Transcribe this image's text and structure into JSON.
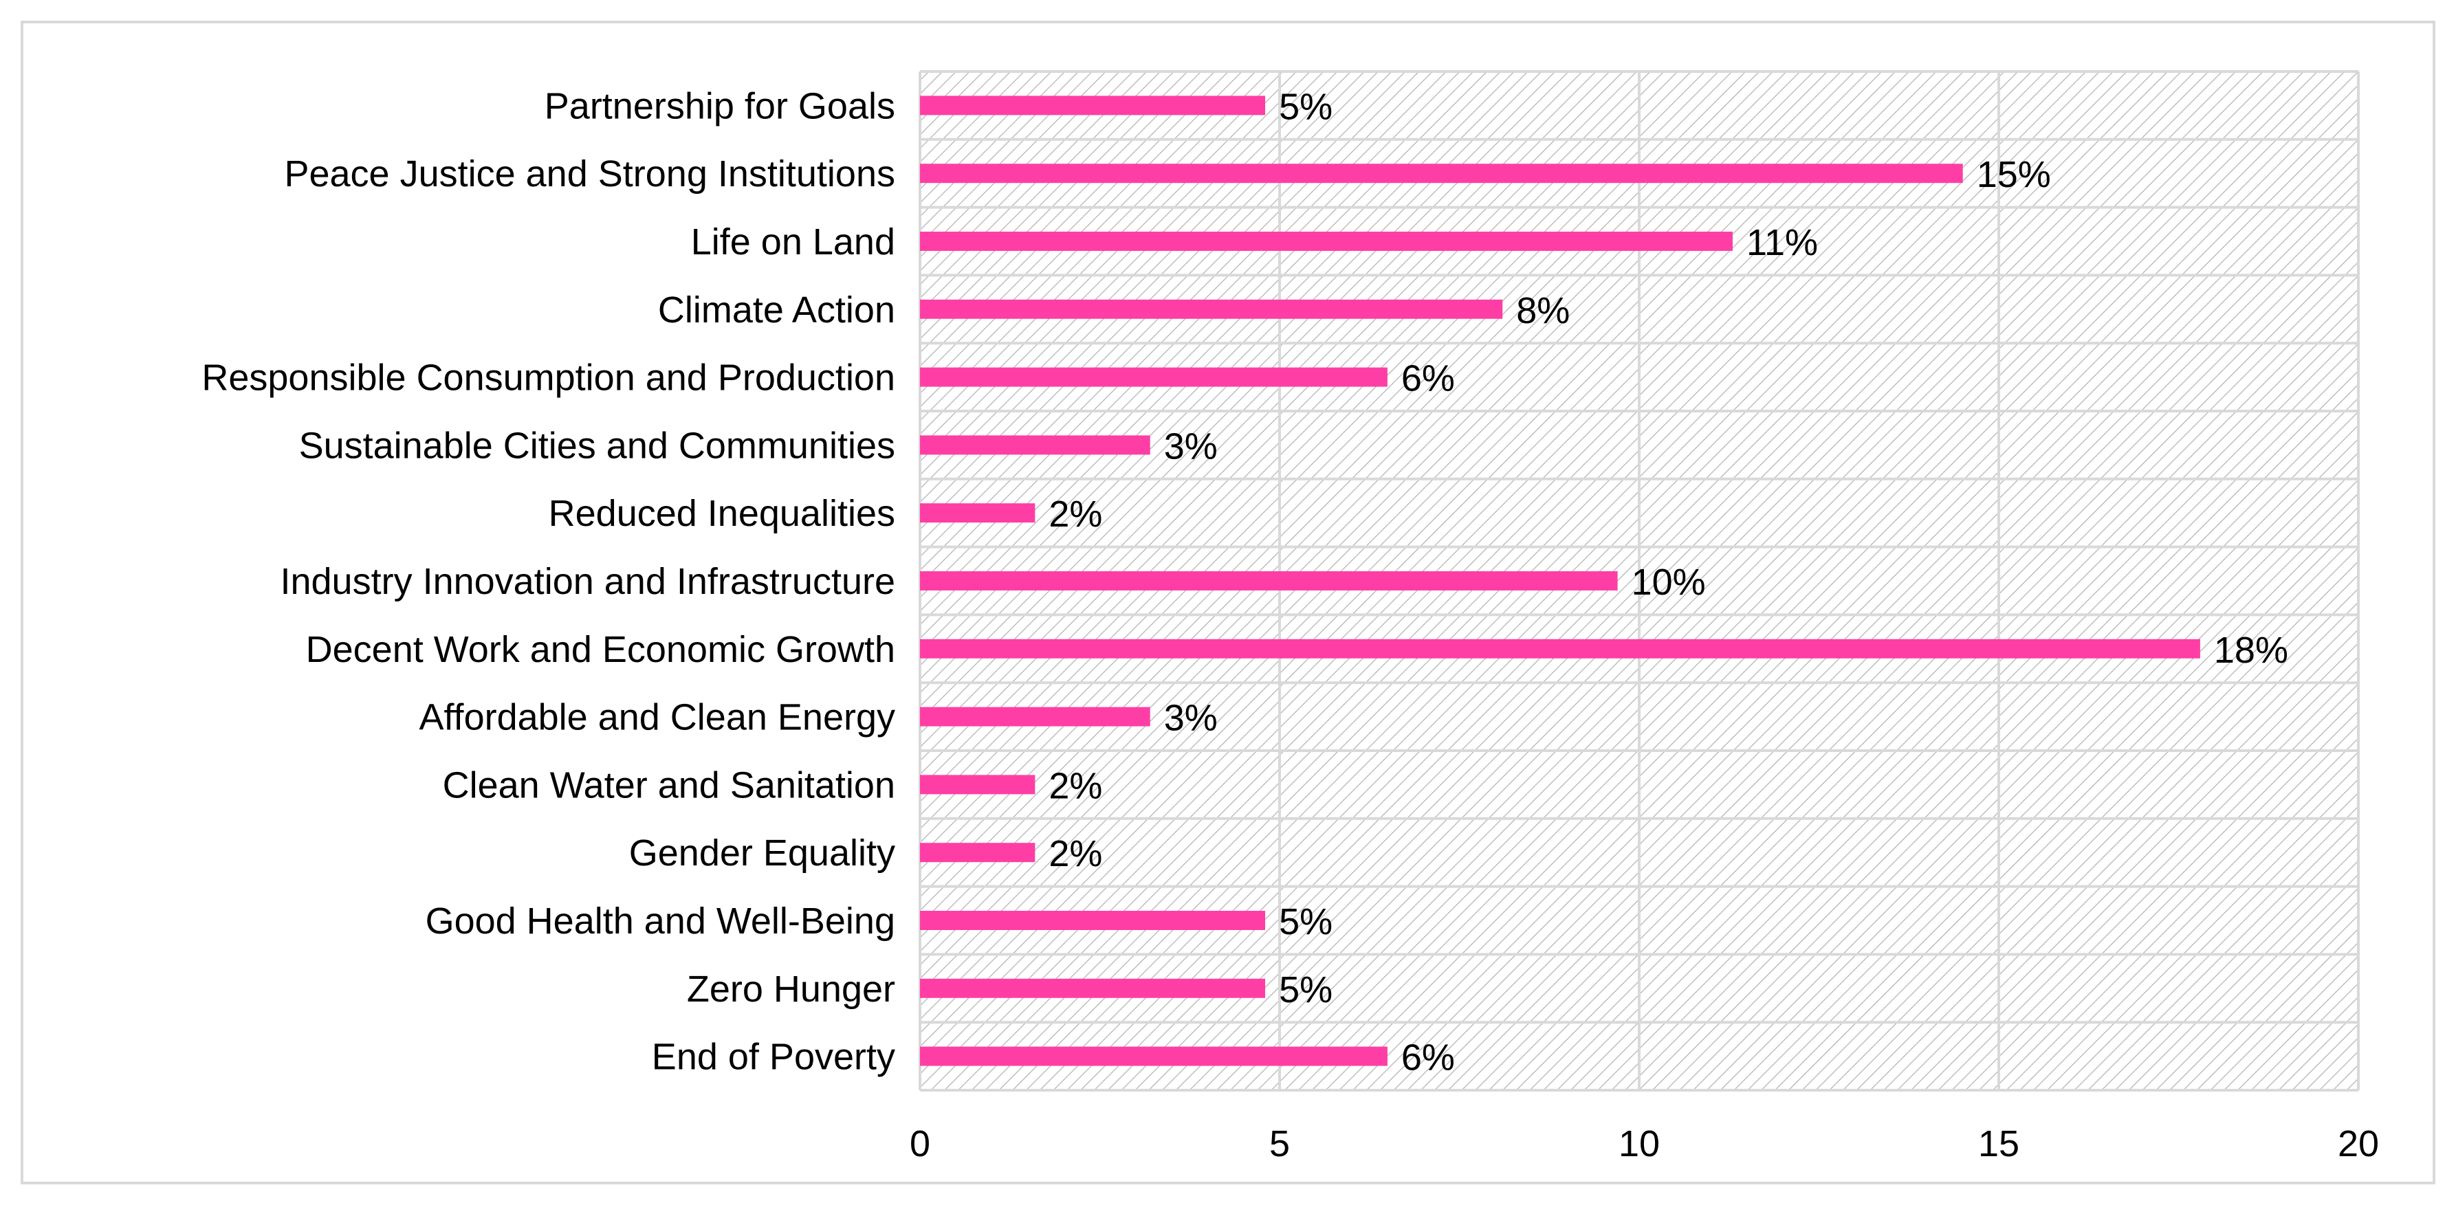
{
  "chart_data": {
    "type": "bar",
    "orientation": "horizontal",
    "title": "",
    "xlabel": "",
    "ylabel": "",
    "xlim": [
      0,
      20
    ],
    "x_ticks": [
      0,
      5,
      10,
      15,
      20
    ],
    "grid": true,
    "legend": "none",
    "bar_color": "#ff3ea5",
    "categories": [
      "Partnership for Goals",
      "Peace Justice and Strong Institutions",
      "Life on Land",
      "Climate Action",
      "Responsible Consumption and Production",
      "Sustainable Cities and Communities",
      "Reduced Inequalities",
      "Industry Innovation and Infrastructure",
      "Decent Work and Economic Growth",
      "Affordable and Clean Energy",
      "Clean Water and Sanitation",
      "Gender Equality",
      "Good Health and Well-Being",
      "Zero Hunger",
      "End of Poverty"
    ],
    "values": [
      4.8,
      14.5,
      11.3,
      8.1,
      6.5,
      3.2,
      1.6,
      9.7,
      17.8,
      3.2,
      1.6,
      1.6,
      4.8,
      4.8,
      6.5
    ],
    "data_labels": [
      "5%",
      "15%",
      "11%",
      "8%",
      "6%",
      "3%",
      "2%",
      "10%",
      "18%",
      "3%",
      "2%",
      "2%",
      "5%",
      "5%",
      "6%"
    ]
  }
}
